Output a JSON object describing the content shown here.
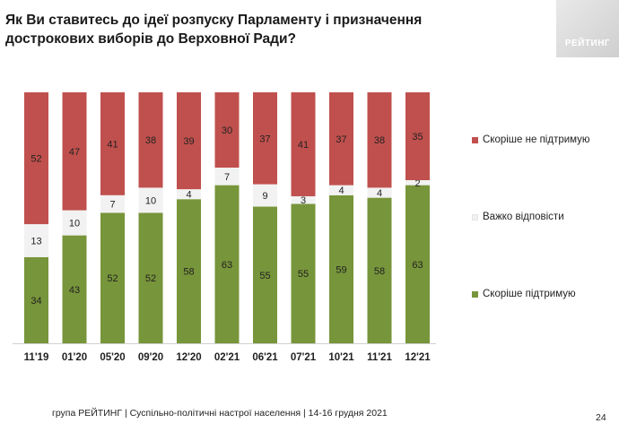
{
  "title": "Як Ви ставитесь до ідеї розпуску Парламенту і призначення дострокових виборів до Верховної Ради?",
  "logo": {
    "text": "РЕЙТИНГ"
  },
  "footer": "група РЕЙТИНГ | Суспільно-політичні настрої населення |  14-16 грудня 2021",
  "page_number": "24",
  "colors": {
    "support": "#77953a",
    "hard": "#f2f2f2",
    "oppose": "#c0504d"
  },
  "chart_data": {
    "type": "bar",
    "stacked": true,
    "categories": [
      "11'19",
      "01'20",
      "05'20",
      "09'20",
      "12'20",
      "02'21",
      "06'21",
      "07'21",
      "10'21",
      "11'21",
      "12'21"
    ],
    "series": [
      {
        "name": "Скоріше  підтримую",
        "values": [
          34,
          43,
          52,
          52,
          58,
          63,
          55,
          55,
          59,
          58,
          63
        ]
      },
      {
        "name": "Важко відповісти",
        "values": [
          13,
          10,
          7,
          10,
          4,
          7,
          9,
          3,
          4,
          4,
          2
        ]
      },
      {
        "name": "Скоріше не підтримую",
        "values": [
          52,
          47,
          41,
          38,
          39,
          30,
          37,
          41,
          37,
          38,
          35
        ]
      }
    ],
    "ylim": [
      0,
      100
    ],
    "legend_position": "right"
  }
}
